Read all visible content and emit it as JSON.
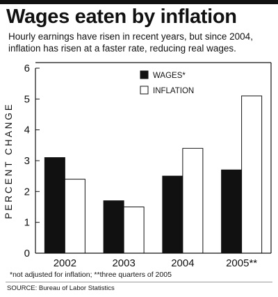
{
  "header": {
    "title": "Wages eaten by inflation",
    "subtitle_lines": [
      "Hourly earnings have risen in recent years, but since 2004,",
      "inflation has risen at a faster rate, reducing real wages."
    ]
  },
  "footnote": "*not adjusted for inflation; **three quarters of 2005",
  "source": "SOURCE: Bureau of Labor Statistics",
  "colors": {
    "ink": "#111111",
    "wages_fill": "#111111",
    "inflation_fill": "#ffffff",
    "rule": "#999999"
  },
  "chart_data": {
    "type": "bar",
    "title": "Wages eaten by inflation",
    "subtitle": "Hourly earnings have risen in recent years, but since 2004, inflation has risen at a faster rate, reducing real wages.",
    "xlabel": "",
    "ylabel": "PERCENT CHANGE",
    "categories": [
      "2002",
      "2003",
      "2004",
      "2005**"
    ],
    "series": [
      {
        "name": "WAGES*",
        "values": [
          3.1,
          1.7,
          2.5,
          2.7
        ]
      },
      {
        "name": "INFLATION",
        "values": [
          2.4,
          1.5,
          3.4,
          5.1
        ]
      }
    ],
    "ylim": [
      0,
      6
    ],
    "yticks": [
      "0",
      "1",
      "2",
      "3",
      "4",
      "5",
      "6"
    ],
    "grid": false,
    "legend": "top-center"
  }
}
